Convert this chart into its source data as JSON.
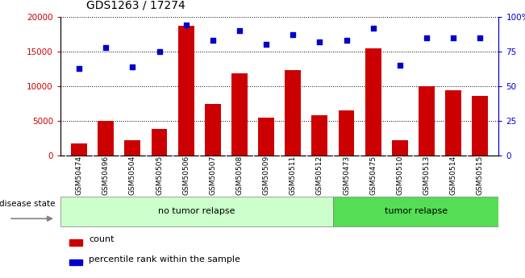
{
  "title": "GDS1263 / 17274",
  "categories": [
    "GSM50474",
    "GSM50496",
    "GSM50504",
    "GSM50505",
    "GSM50506",
    "GSM50507",
    "GSM50508",
    "GSM50509",
    "GSM50511",
    "GSM50512",
    "GSM50473",
    "GSM50475",
    "GSM50510",
    "GSM50513",
    "GSM50514",
    "GSM50515"
  ],
  "counts": [
    1800,
    5000,
    2200,
    3800,
    18700,
    7400,
    11900,
    5500,
    12300,
    5800,
    6500,
    15500,
    2200,
    10000,
    9400,
    8600
  ],
  "percentiles": [
    63,
    78,
    64,
    75,
    94,
    83,
    90,
    80,
    87,
    82,
    83,
    92,
    65,
    85,
    85,
    85
  ],
  "ylim_left": [
    0,
    20000
  ],
  "ylim_right": [
    0,
    100
  ],
  "yticks_left": [
    0,
    5000,
    10000,
    15000,
    20000
  ],
  "yticks_right": [
    0,
    25,
    50,
    75,
    100
  ],
  "ytick_labels_left": [
    "0",
    "5000",
    "10000",
    "15000",
    "20000"
  ],
  "ytick_labels_right": [
    "0",
    "25",
    "50",
    "75",
    "100%"
  ],
  "bar_color": "#cc0000",
  "dot_color": "#0000cc",
  "no_tumor_count": 10,
  "tumor_count": 6,
  "no_tumor_label": "no tumor relapse",
  "tumor_label": "tumor relapse",
  "disease_state_label": "disease state",
  "legend_count": "count",
  "legend_percentile": "percentile rank within the sample",
  "bg_color_notumor": "#ccffcc",
  "bg_color_tumor": "#55dd55",
  "xlabels_bg": "#cccccc",
  "bar_width": 0.6
}
